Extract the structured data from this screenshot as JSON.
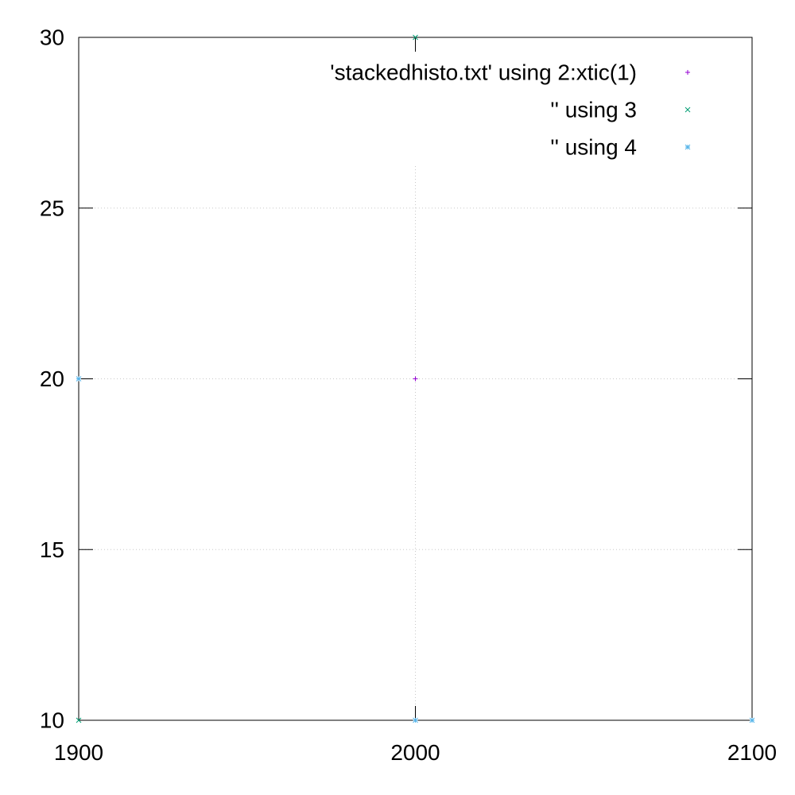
{
  "chart_data": {
    "type": "scatter",
    "title": "",
    "xlabel": "",
    "ylabel": "",
    "xlim": [
      1900,
      2100
    ],
    "ylim": [
      10,
      30
    ],
    "x_ticks": [
      1900,
      2000,
      2100
    ],
    "y_ticks": [
      10,
      15,
      20,
      25,
      30
    ],
    "grid": true,
    "legend_position": "top-right",
    "series": [
      {
        "name": "'stackedhisto.txt' using 2:xtic(1)",
        "color": "#9400d3",
        "marker": "plus",
        "points": [
          {
            "x": 2000,
            "y": 20
          }
        ]
      },
      {
        "name": "'' using 3",
        "color": "#009e73",
        "marker": "cross",
        "points": [
          {
            "x": 1900,
            "y": 10
          },
          {
            "x": 2000,
            "y": 30
          }
        ]
      },
      {
        "name": "'' using 4",
        "color": "#56b4e9",
        "marker": "asterisk",
        "points": [
          {
            "x": 1900,
            "y": 20
          },
          {
            "x": 2000,
            "y": 10
          },
          {
            "x": 2100,
            "y": 10
          }
        ]
      }
    ]
  }
}
